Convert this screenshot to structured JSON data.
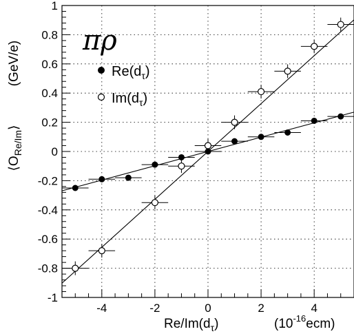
{
  "chart_data": {
    "type": "scatter",
    "xlim": [
      -5.5,
      5.5
    ],
    "ylim": [
      -1.0,
      1.0
    ],
    "x_ticks": [
      "-4",
      "-2",
      "0",
      "2",
      "4"
    ],
    "x_tick_values": [
      -4,
      -2,
      0,
      2,
      4
    ],
    "y_ticks": [
      "1",
      "0.8",
      "0.6",
      "0.4",
      "0.2",
      "0",
      "-0.2",
      "-0.4",
      "-0.6",
      "-0.8",
      "-1"
    ],
    "y_tick_values": [
      1,
      0.8,
      0.6,
      0.4,
      0.2,
      0,
      -0.2,
      -0.4,
      -0.6,
      -0.8,
      -1
    ],
    "grid": true,
    "xlabel": "Re/Im(d",
    "xlabel_sub": "τ",
    "xunit": "(10",
    "xunit_sup": "-16",
    "xunit_tail": "ecm)",
    "ylabel_pre": "⟨O",
    "ylabel_sub": "Re/Im",
    "ylabel_post": "⟩",
    "yunit": "(GeV/e)",
    "process_label": "πρ",
    "legend_position": "top-left",
    "series": [
      {
        "name": "Re(dτ)",
        "legend_main": "Re(d",
        "legend_sub": "τ",
        "legend_close": ")",
        "marker": "filled",
        "x": [
          -5,
          -4,
          -3,
          -2,
          -1,
          0,
          1,
          2,
          3,
          4,
          5
        ],
        "y": [
          -0.25,
          -0.19,
          -0.18,
          -0.09,
          -0.04,
          0.0,
          0.07,
          0.1,
          0.13,
          0.21,
          0.24
        ],
        "fit_slope": 0.049,
        "fit_intercept": 0.0
      },
      {
        "name": "Im(dτ)",
        "legend_main": "Im(d",
        "legend_sub": "τ",
        "legend_close": ")",
        "marker": "open",
        "x": [
          -5,
          -4,
          -2,
          -1,
          0,
          1,
          2,
          3,
          4,
          5
        ],
        "y": [
          -0.8,
          -0.68,
          -0.35,
          -0.1,
          0.04,
          0.2,
          0.41,
          0.55,
          0.72,
          0.87
        ],
        "fit_slope": 0.164,
        "fit_intercept": 0.0
      }
    ]
  }
}
